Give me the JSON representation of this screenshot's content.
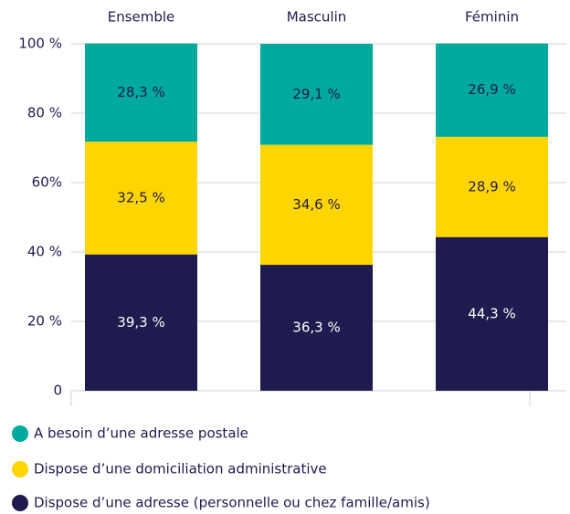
{
  "chart_data": {
    "type": "stacked_bar",
    "categories": [
      "Ensemble",
      "Masculin",
      "Féminin"
    ],
    "series": [
      {
        "name": "Dispose d’une adresse (personnelle ou chez famille/amis)",
        "color": "#1f1b4e",
        "values": [
          39.3,
          36.3,
          44.3
        ],
        "value_labels": [
          "39,3 %",
          "36,3 %",
          "44,3 %"
        ]
      },
      {
        "name": "Dispose d’une domiciliation administrative",
        "color": "#ffd500",
        "values": [
          32.5,
          34.6,
          28.9
        ],
        "value_labels": [
          "32,5 %",
          "34,6 %",
          "28,9 %"
        ]
      },
      {
        "name": "A besoin d’une adresse postale",
        "color": "#00a99d",
        "values": [
          28.3,
          29.1,
          26.9
        ],
        "value_labels": [
          "28,3 %",
          "29,1 %",
          "26,9 %"
        ]
      }
    ],
    "ylim": [
      0,
      100
    ],
    "yticks": [
      0,
      {
        "value": 20,
        "label": "20 %"
      },
      {
        "value": 40,
        "label": "40 %"
      },
      {
        "value": 60,
        "label": "60%"
      },
      {
        "value": 80,
        "label": "80 %"
      },
      {
        "value": 100,
        "label": "100 %"
      }
    ],
    "grid": true
  }
}
